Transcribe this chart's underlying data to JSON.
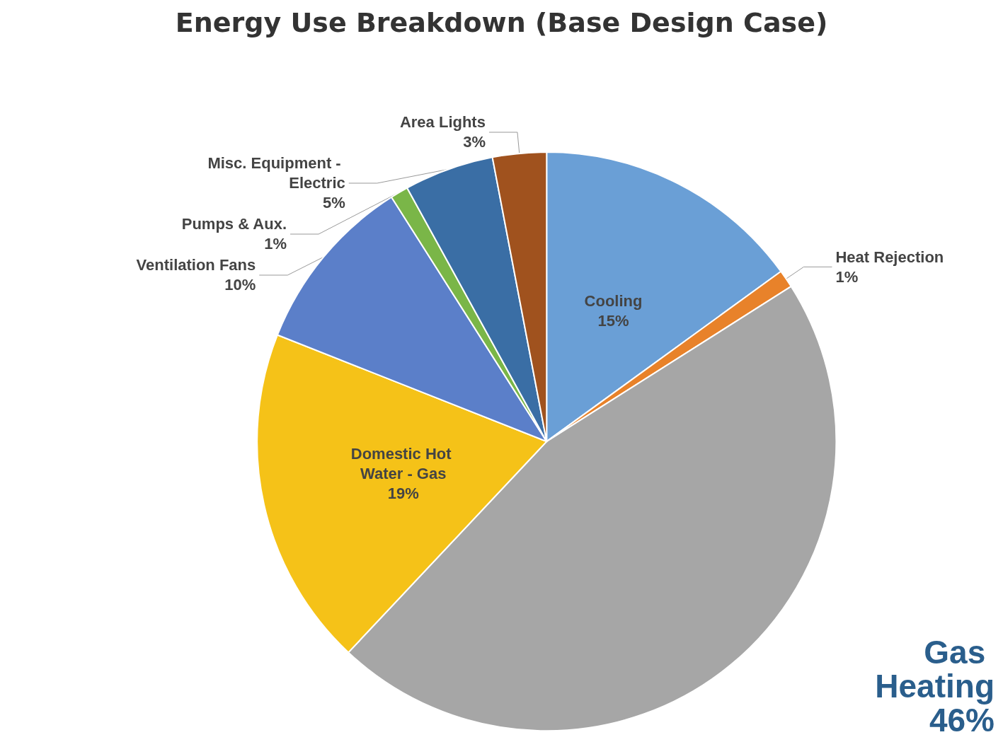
{
  "chart_data": {
    "type": "pie",
    "title": "Energy Use Breakdown (Base Design Case)",
    "categories": [
      "Cooling",
      "Heat Rejection",
      "Gas Heating",
      "Domestic Hot Water - Gas",
      "Ventilation Fans",
      "Pumps & Aux.",
      "Misc. Equipment - Electric",
      "Area Lights"
    ],
    "values": [
      15,
      1,
      46,
      19,
      10,
      1,
      5,
      3
    ],
    "value_labels": [
      "15%",
      "1%",
      "46%",
      "19%",
      "10%",
      "1%",
      "5%",
      "3%"
    ],
    "colors": [
      "#6a9fd6",
      "#e8822a",
      "#a6a6a6",
      "#f5c218",
      "#5b7fc9",
      "#7ab648",
      "#3a6ea5",
      "#a0521e"
    ]
  }
}
